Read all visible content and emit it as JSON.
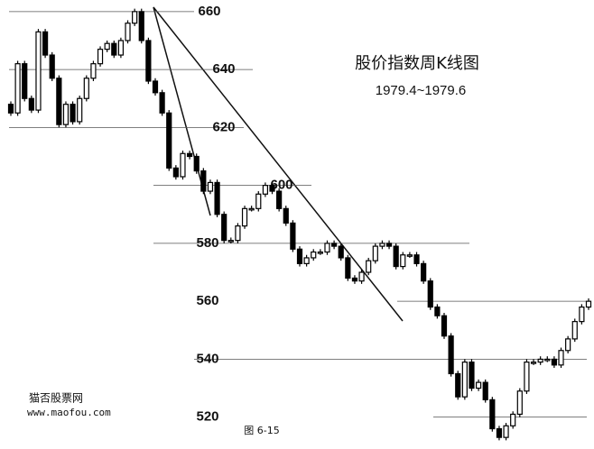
{
  "chart_data": {
    "type": "candlestick",
    "title": "股价指数周K线图",
    "subtitle": "1979.4~1979.6",
    "caption": "图 6-15",
    "watermark": [
      "猫否股票网",
      "www.maofou.com"
    ],
    "ylim": [
      509,
      664
    ],
    "yticks": [
      520,
      540,
      560,
      580,
      600,
      620,
      640,
      660
    ],
    "grid": true,
    "up_color": "#ffffff",
    "down_color": "#000000",
    "open": [
      628,
      625,
      642,
      630,
      626,
      653,
      645,
      637,
      621,
      628,
      622,
      630,
      637,
      642,
      647,
      649,
      645,
      650,
      656,
      660,
      650,
      636,
      632,
      625,
      606,
      603,
      611,
      610,
      605,
      598,
      601,
      590,
      581,
      581,
      586,
      592,
      592,
      597,
      600,
      598,
      592,
      587,
      578,
      573,
      575,
      577,
      577,
      580,
      579,
      575,
      568,
      567,
      570,
      574,
      579,
      580,
      579,
      572,
      576,
      576,
      573,
      567,
      558,
      555,
      548,
      535,
      527,
      539,
      530,
      532,
      526,
      516,
      513,
      517,
      521,
      529,
      539,
      539,
      540,
      540,
      538,
      543,
      547,
      553,
      558
    ],
    "high": [
      629,
      643,
      643,
      631,
      654,
      654,
      646,
      638,
      629,
      629,
      631,
      638,
      643,
      648,
      650,
      650,
      651,
      657,
      661,
      661,
      651,
      637,
      633,
      626,
      607,
      612,
      612,
      611,
      606,
      602,
      602,
      591,
      582,
      587,
      593,
      593,
      598,
      601,
      601,
      599,
      593,
      588,
      579,
      576,
      578,
      578,
      581,
      581,
      580,
      576,
      569,
      571,
      575,
      580,
      581,
      581,
      580,
      577,
      577,
      577,
      574,
      568,
      559,
      556,
      549,
      536,
      540,
      540,
      533,
      533,
      527,
      517,
      518,
      522,
      530,
      540,
      540,
      541,
      541,
      541,
      544,
      548,
      554,
      559,
      561
    ],
    "low": [
      624,
      624,
      629,
      625,
      625,
      644,
      636,
      620,
      620,
      621,
      621,
      629,
      636,
      641,
      646,
      644,
      644,
      649,
      655,
      649,
      635,
      631,
      624,
      605,
      602,
      602,
      609,
      604,
      597,
      597,
      589,
      580,
      580,
      580,
      585,
      591,
      591,
      596,
      597,
      591,
      586,
      577,
      572,
      572,
      574,
      576,
      576,
      578,
      574,
      567,
      566,
      566,
      569,
      573,
      578,
      578,
      571,
      571,
      575,
      572,
      566,
      557,
      554,
      547,
      534,
      526,
      526,
      529,
      529,
      525,
      515,
      512,
      512,
      516,
      520,
      528,
      538,
      538,
      539,
      537,
      537,
      542,
      546,
      552,
      557
    ],
    "close": [
      625,
      642,
      630,
      626,
      653,
      645,
      637,
      621,
      628,
      622,
      630,
      637,
      642,
      647,
      649,
      645,
      650,
      656,
      660,
      650,
      636,
      632,
      625,
      606,
      603,
      611,
      610,
      605,
      598,
      601,
      590,
      581,
      581,
      586,
      592,
      592,
      597,
      600,
      598,
      592,
      587,
      578,
      573,
      575,
      577,
      577,
      580,
      579,
      575,
      568,
      567,
      570,
      574,
      579,
      580,
      579,
      572,
      576,
      576,
      573,
      567,
      558,
      555,
      548,
      535,
      527,
      539,
      530,
      532,
      526,
      516,
      513,
      517,
      521,
      529,
      539,
      539,
      540,
      540,
      538,
      543,
      547,
      553,
      558,
      560
    ]
  }
}
